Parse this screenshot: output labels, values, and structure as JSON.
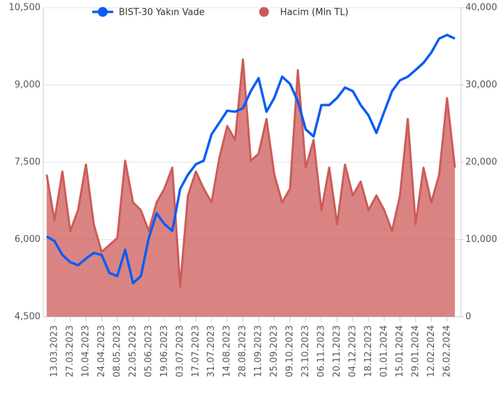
{
  "chart_data": {
    "type": "combo",
    "categories": [
      null,
      "13.03.2023",
      null,
      "27.03.2023",
      null,
      "10.04.2023",
      null,
      "24.04.2023",
      null,
      "08.05.2023",
      null,
      "22.05.2023",
      null,
      "05.06.2023",
      null,
      "19.06.2023",
      null,
      "03.07.2023",
      null,
      "17.07.2023",
      null,
      "31.07.2023",
      null,
      "14.08.2023",
      null,
      "28.08.2023",
      null,
      "11.09.2023",
      null,
      "25.09.2023",
      null,
      "09.10.2023",
      null,
      "23.10.2023",
      null,
      "06.11.2023",
      null,
      "20.11.2023",
      null,
      "04.12.2023",
      null,
      "18.12.2023",
      null,
      "01.01.2024",
      null,
      "15.01.2024",
      null,
      "29.01.2024",
      null,
      "12.02.2024",
      null,
      "26.02.2024",
      null
    ],
    "series": [
      {
        "name": "Hacim (Mln TL)",
        "type": "area",
        "axis": "y2",
        "color": "#cc5b58",
        "values": [
          18400,
          12500,
          18800,
          11100,
          13800,
          19700,
          12000,
          8400,
          9300,
          10200,
          20200,
          14800,
          13800,
          11100,
          14800,
          16600,
          19300,
          3900,
          15700,
          18800,
          16600,
          14800,
          20600,
          24700,
          22900,
          33300,
          20200,
          21100,
          25600,
          18400,
          14800,
          16600,
          31900,
          19300,
          22900,
          13800,
          19300,
          12000,
          19700,
          15700,
          17500,
          13800,
          15700,
          13800,
          11100,
          15700,
          25600,
          12000,
          19300,
          14800,
          18400,
          28300,
          19300
        ]
      },
      {
        "name": "BIST-30 Yakın Vade",
        "type": "line",
        "axis": "y",
        "color": "#0b5cf2",
        "values": [
          6060,
          5970,
          5700,
          5560,
          5500,
          5630,
          5740,
          5700,
          5350,
          5290,
          5800,
          5150,
          5290,
          6030,
          6510,
          6300,
          6170,
          6980,
          7260,
          7460,
          7530,
          8040,
          8270,
          8500,
          8480,
          8550,
          8880,
          9130,
          8480,
          8750,
          9160,
          9020,
          8680,
          8140,
          8000,
          8610,
          8610,
          8750,
          8950,
          8880,
          8610,
          8410,
          8070,
          8480,
          8880,
          9090,
          9160,
          9290,
          9430,
          9630,
          9900,
          9970,
          9900
        ]
      }
    ],
    "ylim": [
      4500,
      10500
    ],
    "yticks": [
      {
        "value": 4500,
        "label": "4,500"
      },
      {
        "value": 6000,
        "label": "6,000"
      },
      {
        "value": 7500,
        "label": "7,500"
      },
      {
        "value": 9000,
        "label": "9,000"
      },
      {
        "value": 10500,
        "label": "10,500"
      }
    ],
    "y2lim": [
      0,
      40000
    ],
    "y2ticks": [
      0,
      {
        "value": 10000,
        "label": "10,000"
      },
      {
        "value": 20000,
        "label": "20,000"
      },
      {
        "value": 30000,
        "label": "30,000"
      },
      {
        "value": 40000,
        "label": "40,000"
      }
    ],
    "grid": true
  }
}
